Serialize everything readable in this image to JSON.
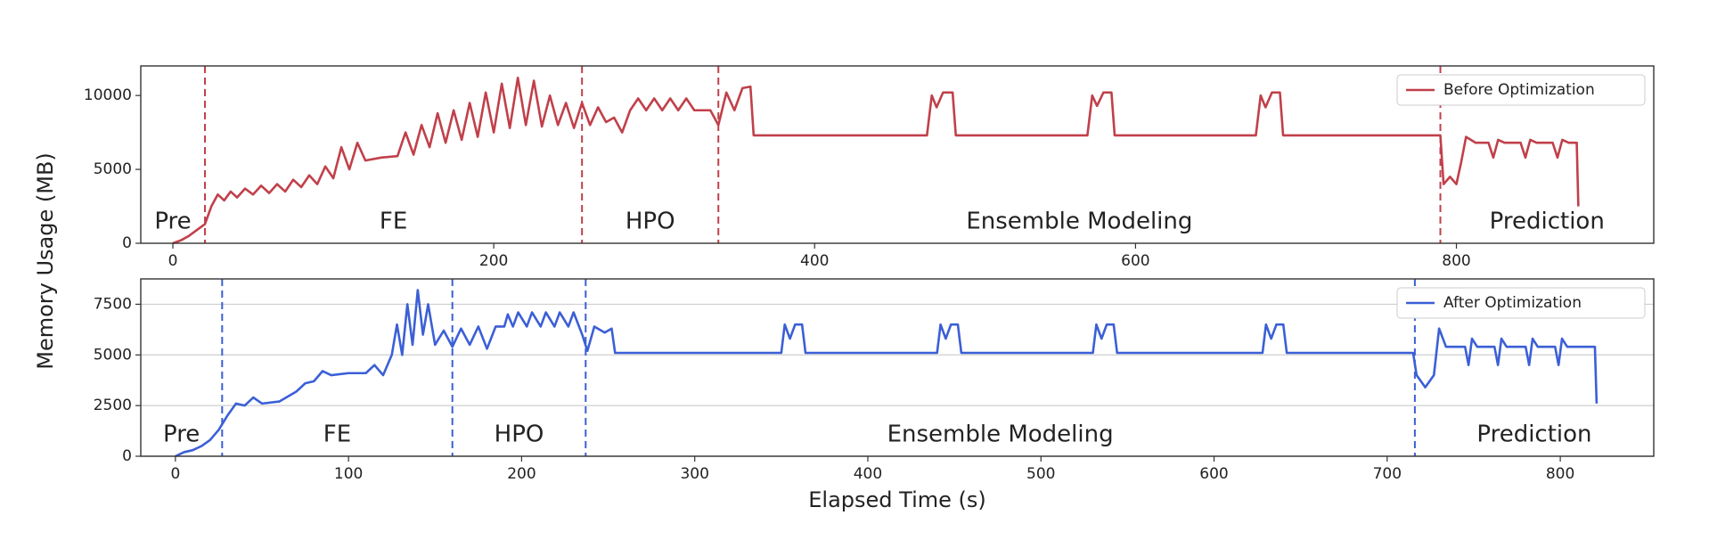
{
  "figure": {
    "ylabel": "Memory Usage (MB)",
    "xlabel": "Elapsed Time (s)"
  },
  "chart_data": [
    {
      "type": "line",
      "legend": "upper right",
      "grid": false,
      "xlim": [
        -20,
        923
      ],
      "xticks": [
        0,
        200,
        400,
        600,
        800
      ],
      "ylim": [
        0,
        12000
      ],
      "yticks": [
        0,
        5000,
        10000
      ],
      "phases": [
        "Pre",
        "FE",
        "HPO",
        "Ensemble Modeling",
        "Prediction"
      ],
      "phase_boundaries": [
        20,
        255,
        340,
        790
      ],
      "x": [
        0,
        5,
        10,
        15,
        20,
        24,
        28,
        32,
        36,
        40,
        45,
        50,
        55,
        60,
        65,
        70,
        75,
        80,
        85,
        90,
        95,
        100,
        105,
        110,
        115,
        120,
        130,
        140,
        145,
        150,
        155,
        160,
        165,
        170,
        175,
        180,
        185,
        190,
        195,
        200,
        205,
        210,
        215,
        220,
        225,
        230,
        235,
        240,
        245,
        250,
        255,
        260,
        265,
        270,
        275,
        280,
        285,
        290,
        295,
        300,
        305,
        310,
        315,
        320,
        325,
        335,
        340,
        345,
        350,
        355,
        360,
        362,
        470,
        473,
        476,
        480,
        486,
        488,
        570,
        573,
        576,
        580,
        585,
        587,
        675,
        678,
        681,
        685,
        690,
        692,
        790,
        792,
        796,
        800,
        803,
        806,
        812,
        820,
        823,
        826,
        830,
        840,
        843,
        846,
        850,
        860,
        863,
        866,
        870,
        875,
        876
      ],
      "series": [
        {
          "name": "Before Optimization",
          "color": "#c0404a",
          "values": [
            0,
            200,
            500,
            900,
            1300,
            2500,
            3300,
            2900,
            3500,
            3100,
            3700,
            3300,
            3900,
            3400,
            4000,
            3500,
            4300,
            3800,
            4600,
            4000,
            5200,
            4400,
            6500,
            5000,
            6800,
            5600,
            5800,
            5900,
            7500,
            6000,
            8000,
            6500,
            8800,
            6800,
            9000,
            7000,
            9500,
            7200,
            10200,
            7500,
            10800,
            7800,
            11200,
            8000,
            11000,
            7900,
            10000,
            8000,
            9500,
            7800,
            9500,
            8000,
            9200,
            8200,
            8500,
            7500,
            9000,
            9800,
            9000,
            9800,
            9000,
            9800,
            9000,
            9800,
            9000,
            9000,
            8000,
            10200,
            9000,
            10500,
            10600,
            7300,
            7300,
            10000,
            9200,
            10200,
            10200,
            7300,
            7300,
            10000,
            9300,
            10200,
            10200,
            7300,
            7300,
            10000,
            9200,
            10200,
            10200,
            7300,
            7300,
            4000,
            4500,
            4000,
            5500,
            7200,
            6800,
            6800,
            5800,
            7000,
            6800,
            6800,
            5800,
            7000,
            6800,
            6800,
            5800,
            7000,
            6800,
            6800,
            2500
          ]
        }
      ]
    },
    {
      "type": "line",
      "legend": "upper right",
      "grid": true,
      "xlim": [
        -20,
        854
      ],
      "xticks": [
        0,
        100,
        200,
        300,
        400,
        500,
        600,
        700,
        800
      ],
      "ylim": [
        0,
        8750
      ],
      "yticks": [
        0,
        2500,
        5000,
        7500
      ],
      "phases": [
        "Pre",
        "FE",
        "HPO",
        "Ensemble Modeling",
        "Prediction"
      ],
      "phase_boundaries": [
        27,
        160,
        237,
        716
      ],
      "x": [
        0,
        5,
        10,
        15,
        20,
        25,
        30,
        35,
        40,
        45,
        50,
        60,
        70,
        75,
        80,
        85,
        90,
        100,
        110,
        115,
        120,
        125,
        128,
        131,
        134,
        137,
        140,
        143,
        146,
        150,
        155,
        160,
        165,
        170,
        175,
        180,
        185,
        190,
        192,
        195,
        198,
        203,
        206,
        211,
        214,
        219,
        222,
        227,
        230,
        235,
        238,
        242,
        248,
        252,
        254,
        350,
        352,
        355,
        358,
        362,
        364,
        440,
        442,
        445,
        448,
        452,
        454,
        530,
        532,
        535,
        538,
        542,
        544,
        628,
        630,
        633,
        636,
        640,
        642,
        715,
        717,
        722,
        727,
        730,
        734,
        745,
        747,
        749,
        752,
        762,
        764,
        766,
        769,
        780,
        782,
        784,
        787,
        797,
        799,
        801,
        804,
        820,
        821
      ],
      "series": [
        {
          "name": "After Optimization",
          "color": "#3b5fd6",
          "values": [
            0,
            200,
            300,
            500,
            800,
            1300,
            2000,
            2600,
            2500,
            2900,
            2600,
            2700,
            3200,
            3600,
            3700,
            4200,
            4000,
            4100,
            4100,
            4500,
            4000,
            5000,
            6500,
            5000,
            7500,
            5500,
            8200,
            6000,
            7500,
            5500,
            6200,
            5400,
            6300,
            5500,
            6400,
            5300,
            6400,
            6400,
            7000,
            6400,
            7100,
            6400,
            7100,
            6400,
            7100,
            6400,
            7100,
            6400,
            7100,
            6000,
            5200,
            6400,
            6100,
            6300,
            5100,
            5100,
            6500,
            5800,
            6500,
            6500,
            5100,
            5100,
            6500,
            5800,
            6500,
            6500,
            5100,
            5100,
            6500,
            5800,
            6500,
            6500,
            5100,
            5100,
            6500,
            5800,
            6500,
            6500,
            5100,
            5100,
            4000,
            3400,
            4000,
            6300,
            5400,
            5400,
            4500,
            5800,
            5400,
            5400,
            4500,
            5800,
            5400,
            5400,
            4500,
            5800,
            5400,
            5400,
            4500,
            5800,
            5400,
            5400,
            2600
          ]
        }
      ]
    }
  ]
}
